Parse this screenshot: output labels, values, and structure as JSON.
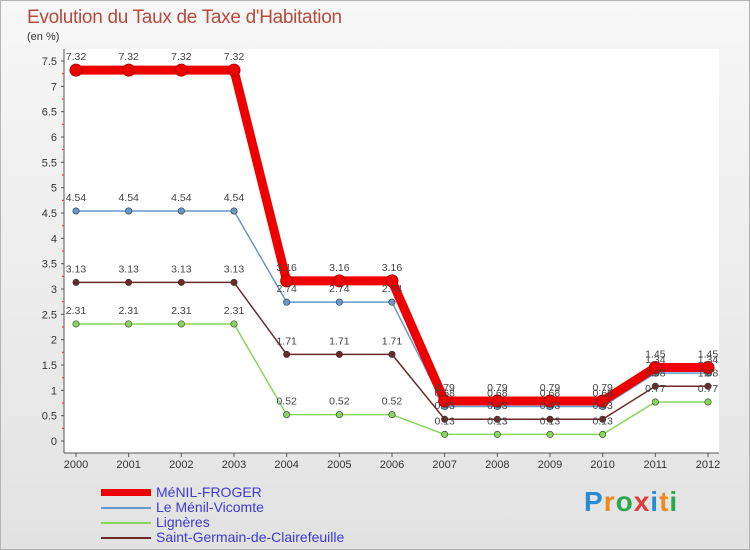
{
  "title": "Evolution du Taux de Taxe d'Habitation",
  "unit": "(en %)",
  "brand": {
    "letters": [
      "P",
      "r",
      "o",
      "x",
      "i",
      "t",
      "i"
    ],
    "colors": [
      "#2a8ad4",
      "#f08a1c",
      "#2aa84a",
      "#e03c3c",
      "#2a8ad4",
      "#f08a1c",
      "#2aa84a"
    ]
  },
  "chart_data": {
    "type": "line",
    "title": "Evolution du Taux de Taxe d'Habitation",
    "ylabel": "(en %)",
    "xlabel": "",
    "ylim": [
      0,
      7.5
    ],
    "yticks": [
      0,
      0.5,
      1,
      1.5,
      2,
      2.5,
      3,
      3.5,
      4,
      4.5,
      5,
      5.5,
      6,
      6.5,
      7,
      7.5
    ],
    "x": [
      "2000",
      "2001",
      "2002",
      "2003",
      "2004",
      "2005",
      "2006",
      "2007",
      "2008",
      "2009",
      "2010",
      "2011",
      "2012"
    ],
    "grid": false,
    "legend": "bottom-left",
    "series": [
      {
        "name": "Saint-Germain-de-Clairefeuille",
        "color": "#6b2a2a",
        "labels_shown": true,
        "values": [
          3.13,
          3.13,
          3.13,
          3.13,
          1.71,
          1.71,
          1.71,
          0.43,
          0.43,
          0.43,
          0.43,
          1.08,
          1.08
        ]
      },
      {
        "name": "Lignères",
        "color": "#88d65a",
        "labels_shown": true,
        "values": [
          2.31,
          2.31,
          2.31,
          2.31,
          0.52,
          0.52,
          0.52,
          0.13,
          0.13,
          0.13,
          0.13,
          0.77,
          0.77
        ]
      },
      {
        "name": "Le Ménil-Vicomte",
        "color": "#6699cc",
        "labels_shown": true,
        "values": [
          4.54,
          4.54,
          4.54,
          4.54,
          2.74,
          2.74,
          2.74,
          0.68,
          0.68,
          0.68,
          0.68,
          1.34,
          1.34
        ]
      },
      {
        "name": "MéNIL-FROGER",
        "color": "#ee0000",
        "labels_shown": true,
        "values": [
          7.32,
          7.32,
          7.32,
          7.32,
          3.16,
          3.16,
          3.16,
          0.79,
          0.79,
          0.79,
          0.79,
          1.45,
          1.45
        ]
      }
    ],
    "legend_entries": [
      "MéNIL-FROGER",
      "Le Ménil-Vicomte",
      "Lignères",
      "Saint-Germain-de-Clairefeuille"
    ]
  }
}
